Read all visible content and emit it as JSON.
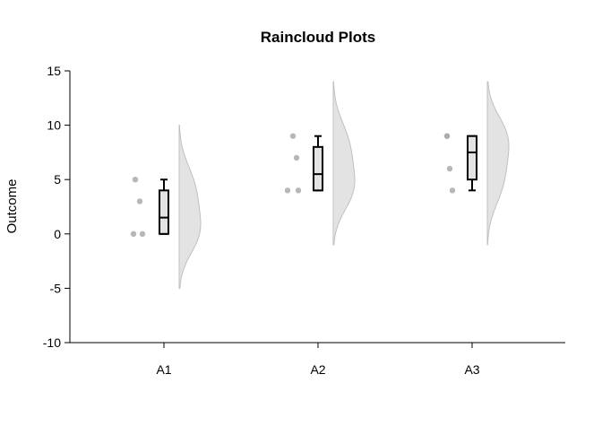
{
  "chart_data": {
    "type": "raincloud",
    "title": "Raincloud Plots",
    "xlabel": "",
    "ylabel": "Outcome",
    "ylim": [
      -10,
      15
    ],
    "yticks": [
      -10,
      -5,
      0,
      5,
      10,
      15
    ],
    "ytick_labels": [
      "-10",
      "-5",
      "0",
      "5",
      "10",
      "15"
    ],
    "categories": [
      "A1",
      "A2",
      "A3"
    ],
    "groups": [
      {
        "name": "A1",
        "points": [
          0,
          0,
          3,
          5
        ],
        "box": {
          "min": 0,
          "q1": 0,
          "median": 1.5,
          "q3": 4,
          "max": 5
        },
        "density_range": [
          -5,
          10
        ]
      },
      {
        "name": "A2",
        "points": [
          4,
          4,
          7,
          9
        ],
        "box": {
          "min": 4,
          "q1": 4,
          "median": 5.5,
          "q3": 8,
          "max": 9
        },
        "density_range": [
          -1,
          14
        ]
      },
      {
        "name": "A3",
        "points": [
          4,
          6,
          9,
          9
        ],
        "box": {
          "min": 4,
          "q1": 5,
          "median": 7.5,
          "q3": 9,
          "max": 9
        },
        "density_range": [
          -1,
          14
        ]
      }
    ],
    "colors": {
      "points": "#aaaaaa",
      "box_fill": "#e3e3e3",
      "box_stroke": "#000000",
      "cloud_fill": "#e3e3e3",
      "cloud_stroke": "#c0c0c0"
    },
    "grid": false,
    "legend": "none"
  }
}
